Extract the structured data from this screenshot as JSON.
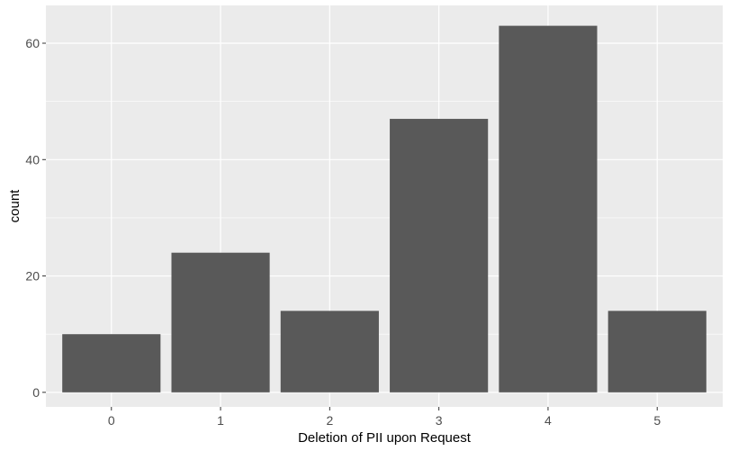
{
  "chart_data": {
    "type": "bar",
    "title": "",
    "xlabel": "Deletion of PII upon Request",
    "ylabel": "count",
    "categories": [
      "0",
      "1",
      "2",
      "3",
      "4",
      "5"
    ],
    "values": [
      10,
      24,
      14,
      47,
      63,
      14
    ],
    "ylim": [
      -2.5,
      66.5
    ],
    "yticks": [
      0,
      20,
      40,
      60
    ],
    "yticks_labels": [
      "0",
      "20",
      "40",
      "60"
    ],
    "grid": true,
    "legend": "none",
    "colors": {
      "panel_background": "#ebebeb",
      "grid_major": "#ffffff",
      "bar_fill": "#595959",
      "tick_text": "#4d4d4d",
      "axis_title": "#000000"
    }
  }
}
